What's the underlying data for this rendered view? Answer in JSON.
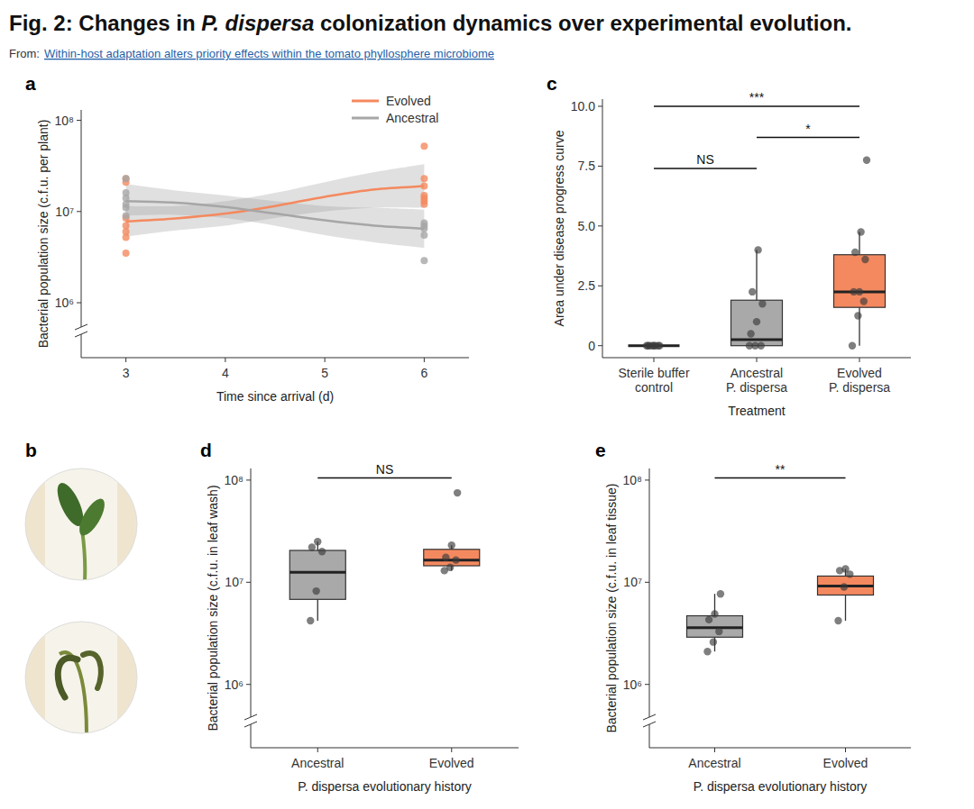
{
  "figure": {
    "title": [
      "Fig. 2: Changes in ",
      "P. dispersa",
      " colonization dynamics over experimental evolution."
    ],
    "source_label": "From:",
    "source": "Within-host adaptation alters priority effects within the tomato phyllosphere microbiome",
    "photo_panel": "b"
  },
  "chart_data": [
    {
      "panel": "a",
      "type": "line",
      "xlabel": "Time since arrival (d)",
      "ylabel": "Bacterial population size (c.f.u. per plant)",
      "xlim": [
        2.55,
        6.45
      ],
      "xticks": [
        3,
        4,
        5,
        6
      ],
      "ylim": [
        250000,
        130000000
      ],
      "yticks": [
        {
          "value": 1000000,
          "label": "10⁶"
        },
        {
          "value": 10000000,
          "label": "10⁷"
        },
        {
          "value": 100000000,
          "label": "10⁸"
        }
      ],
      "log": "y",
      "legend": "top-right",
      "series": [
        {
          "name": "Evolved",
          "color": "#f4895f",
          "x": [
            3,
            3.5,
            4,
            4.5,
            5,
            5.5,
            6
          ],
          "values": [
            7800000,
            8400000,
            9500000,
            11500000,
            14500000,
            17500000,
            19000000
          ],
          "lower": [
            5300000,
            6200000,
            7000000,
            8500000,
            10000000,
            11000000,
            11000000
          ],
          "upper": [
            11500000,
            11500000,
            13000000,
            16000000,
            21000000,
            27000000,
            33000000
          ],
          "points": {
            "x": [
              3,
              3,
              3,
              3,
              3,
              3,
              3,
              6,
              6,
              6,
              6,
              6,
              6,
              6
            ],
            "values": [
              23000000,
              21000000,
              8500000,
              7000000,
              6000000,
              5200000,
              3500000,
              52000000,
              23000000,
              19000000,
              15000000,
              14000000,
              13000000,
              12000000
            ]
          }
        },
        {
          "name": "Ancestral",
          "color": "#a6a6a6",
          "x": [
            3,
            3.5,
            4,
            4.5,
            5,
            5.5,
            6
          ],
          "values": [
            13000000,
            12500000,
            11200000,
            9500000,
            8000000,
            7000000,
            6500000
          ],
          "lower": [
            9000000,
            9200000,
            8500000,
            7000000,
            5500000,
            4600000,
            4000000
          ],
          "upper": [
            20000000,
            17000000,
            15000000,
            13000000,
            11500000,
            11000000,
            10500000
          ],
          "points": {
            "x": [
              3,
              3,
              3,
              3,
              3,
              3,
              6,
              6,
              6,
              6,
              6
            ],
            "values": [
              23000000,
              16000000,
              14000000,
              12000000,
              11000000,
              9000000,
              7500000,
              7000000,
              6500000,
              5500000,
              2900000
            ]
          }
        }
      ]
    },
    {
      "panel": "c",
      "type": "box",
      "xlabel": "Treatment",
      "ylabel": "Area under disease progress curve",
      "categories": [
        "Sterile buffer\ncontrol",
        "Ancestral\nP. dispersa",
        "Evolved\nP. dispersa"
      ],
      "colors": [
        "#a9a9a9",
        "#a9a9a9",
        "#f4895f"
      ],
      "ylim": [
        -0.5,
        10.3
      ],
      "yticks": [
        0,
        2.5,
        {
          "value": 5,
          "label": "5.0"
        },
        7.5,
        {
          "value": 10,
          "label": "10.0"
        }
      ],
      "boxes": [
        {
          "min": 0,
          "q1": 0,
          "median": 0,
          "q3": 0,
          "max": 0
        },
        {
          "min": 0,
          "q1": 0,
          "median": 0.25,
          "q3": 1.9,
          "max": 4.0
        },
        {
          "min": 0,
          "q1": 1.6,
          "median": 2.25,
          "q3": 3.8,
          "max": 4.75
        }
      ],
      "points": [
        [
          0,
          0,
          0,
          0,
          0,
          0,
          0,
          0
        ],
        [
          0,
          0,
          0,
          0.5,
          1.0,
          1.75,
          2.25,
          4.0
        ],
        [
          0,
          1.25,
          1.85,
          2.25,
          2.25,
          3.6,
          3.9,
          4.75,
          7.75
        ]
      ],
      "annotations": [
        {
          "from": 0,
          "to": 1,
          "y": 7.4,
          "label": "NS"
        },
        {
          "from": 0,
          "to": 2,
          "y": 10.0,
          "label": "***"
        },
        {
          "from": 1,
          "to": 2,
          "y": 8.7,
          "label": "*"
        }
      ]
    },
    {
      "panel": "d",
      "type": "box",
      "xlabel": "P. dispersa evolutionary history",
      "ylabel": "Bacterial population size (c.f.u. in leaf wash)",
      "categories": [
        "Ancestral",
        "Evolved"
      ],
      "colors": [
        "#a9a9a9",
        "#f4895f"
      ],
      "log": "y",
      "ylim": [
        240000,
        130000000
      ],
      "yticks": [
        {
          "value": 1000000,
          "label": "10⁶"
        },
        {
          "value": 10000000,
          "label": "10⁷"
        },
        {
          "value": 100000000,
          "label": "10⁸"
        }
      ],
      "boxes": [
        {
          "min": 4200000,
          "q1": 6800000,
          "median": 12500000,
          "q3": 20500000,
          "max": 25000000
        },
        {
          "min": 13000000,
          "q1": 14500000,
          "median": 16500000,
          "q3": 21000000,
          "max": 23000000
        }
      ],
      "points": [
        [
          4200000,
          8200000,
          20000000,
          22000000,
          25000000
        ],
        [
          13000000,
          14000000,
          16500000,
          17500000,
          23000000,
          75000000
        ]
      ],
      "annotations": [
        {
          "from": 0,
          "to": 1,
          "y": 105000000,
          "label": "NS"
        }
      ]
    },
    {
      "panel": "e",
      "type": "box",
      "xlabel": "P. dispersa evolutionary history",
      "ylabel": "Bacterial population size (c.f.u. in leaf tissue)",
      "categories": [
        "Ancestral",
        "Evolved"
      ],
      "colors": [
        "#a9a9a9",
        "#f4895f"
      ],
      "log": "y",
      "ylim": [
        240000,
        130000000
      ],
      "yticks": [
        {
          "value": 1000000,
          "label": "10⁶"
        },
        {
          "value": 10000000,
          "label": "10⁷"
        },
        {
          "value": 100000000,
          "label": "10⁸"
        }
      ],
      "boxes": [
        {
          "min": 2100000,
          "q1": 2900000,
          "median": 3600000,
          "q3": 4700000,
          "max": 7700000
        },
        {
          "min": 4200000,
          "q1": 7500000,
          "median": 9200000,
          "q3": 11500000,
          "max": 13500000
        }
      ],
      "points": [
        [
          2100000,
          2600000,
          3300000,
          4300000,
          4900000,
          7700000
        ],
        [
          4200000,
          9000000,
          12000000,
          13000000,
          13500000
        ]
      ],
      "annotations": [
        {
          "from": 0,
          "to": 1,
          "y": 105000000,
          "label": "**"
        }
      ]
    }
  ]
}
